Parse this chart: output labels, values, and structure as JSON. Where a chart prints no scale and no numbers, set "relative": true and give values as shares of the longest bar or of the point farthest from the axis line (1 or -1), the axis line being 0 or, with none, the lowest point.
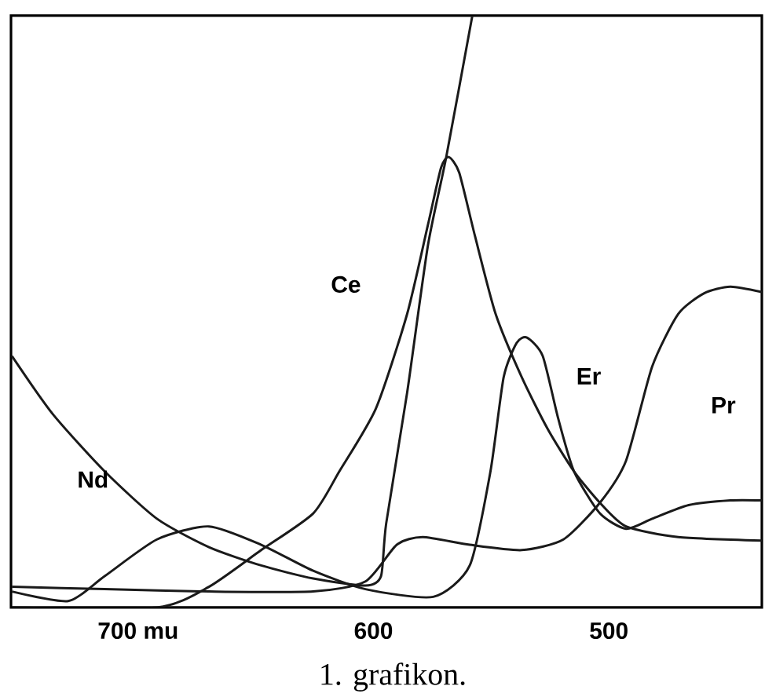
{
  "chart_data": {
    "type": "line",
    "relative": true,
    "xlim": [
      754,
      435
    ],
    "xticks": [
      {
        "value": 700,
        "label": "700 mu"
      },
      600,
      500
    ],
    "annotations": [
      "1. grafikon."
    ],
    "legend": false,
    "marker": "none",
    "line_style": "solid",
    "grid": false,
    "series": [
      {
        "name": "Nd",
        "color": "#1a1a1a",
        "x": [
          753.6,
          736.3,
          714.2,
          692.0,
          669.9,
          647.7,
          625.6,
          603.4,
          596.8,
          594.6,
          585.7,
          576.9,
          569.1,
          558.0
        ],
        "values": [
          0.425,
          0.327,
          0.23,
          0.15,
          0.102,
          0.071,
          0.049,
          0.037,
          0.053,
          0.142,
          0.363,
          0.611,
          0.761,
          1.0
        ]
      },
      {
        "name": "Ce",
        "color": "#1a1a1a",
        "x": [
          753.6,
          692.0,
          669.9,
          647.7,
          625.6,
          614.5,
          599.0,
          585.7,
          576.9,
          571.3,
          568.0,
          563.6,
          556.9,
          548.1,
          537.0,
          525.9,
          514.8,
          503.8,
          492.7,
          470.5,
          435.0
        ],
        "values": [
          0.0,
          0.0,
          0.035,
          0.097,
          0.159,
          0.23,
          0.336,
          0.496,
          0.646,
          0.743,
          0.761,
          0.735,
          0.628,
          0.496,
          0.389,
          0.301,
          0.23,
          0.177,
          0.137,
          0.119,
          0.113
        ]
      },
      {
        "name": "Er",
        "color": "#1a1a1a",
        "x": [
          753.6,
          729.7,
          714.2,
          692.0,
          669.9,
          647.7,
          625.6,
          603.4,
          574.6,
          559.1,
          550.3,
          544.7,
          539.2,
          534.8,
          528.1,
          521.5,
          514.8,
          503.8,
          492.7,
          481.6,
          466.1,
          448.4,
          435.0
        ],
        "values": [
          0.027,
          0.011,
          0.053,
          0.115,
          0.137,
          0.106,
          0.062,
          0.031,
          0.018,
          0.071,
          0.23,
          0.389,
          0.447,
          0.456,
          0.425,
          0.319,
          0.23,
          0.159,
          0.133,
          0.15,
          0.173,
          0.181,
          0.181
        ]
      },
      {
        "name": "Pr",
        "color": "#1a1a1a",
        "x": [
          753.6,
          714.2,
          669.9,
          625.6,
          603.4,
          590.1,
          579.1,
          559.1,
          537.0,
          519.3,
          503.8,
          492.7,
          481.6,
          470.5,
          459.5,
          448.4,
          435.0
        ],
        "values": [
          0.035,
          0.031,
          0.027,
          0.027,
          0.044,
          0.106,
          0.119,
          0.106,
          0.097,
          0.115,
          0.177,
          0.248,
          0.407,
          0.496,
          0.531,
          0.542,
          0.533
        ]
      }
    ]
  }
}
